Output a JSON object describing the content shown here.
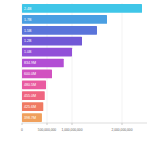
{
  "chart_data": {
    "type": "bar",
    "orientation": "horizontal",
    "categories": [
      null,
      null,
      null,
      null,
      null,
      null,
      null,
      null,
      null,
      null,
      null
    ],
    "values": [
      2400000000,
      1700000000,
      1500000000,
      1200000000,
      1000000000,
      834900000,
      600000000,
      480500000,
      455000000,
      425600000,
      398700000
    ],
    "value_labels": [
      "2.4B",
      "1.7B",
      "1.5B",
      "1.2B",
      "1.0B",
      "834.9M",
      "600.0M",
      "480.5M",
      "455.0M",
      "425.6M",
      "398.7M"
    ],
    "colors": [
      "#3fc6e8",
      "#4a9fe2",
      "#5a74da",
      "#7158d6",
      "#9250d8",
      "#b24dd4",
      "#d152c0",
      "#e95aa0",
      "#ef6580",
      "#f07a62",
      "#f0a05c"
    ],
    "xlim": [
      0,
      2500000000
    ],
    "xticks": [
      {
        "value": 0,
        "label": "0"
      },
      {
        "value": 500000000,
        "label": "500,000,000"
      },
      {
        "value": 1000000000,
        "label": "1,000,000,000"
      },
      {
        "value": 2000000000,
        "label": "2,000,000,000"
      }
    ],
    "grid": true,
    "data_labels": true,
    "tick_labels": "x"
  }
}
